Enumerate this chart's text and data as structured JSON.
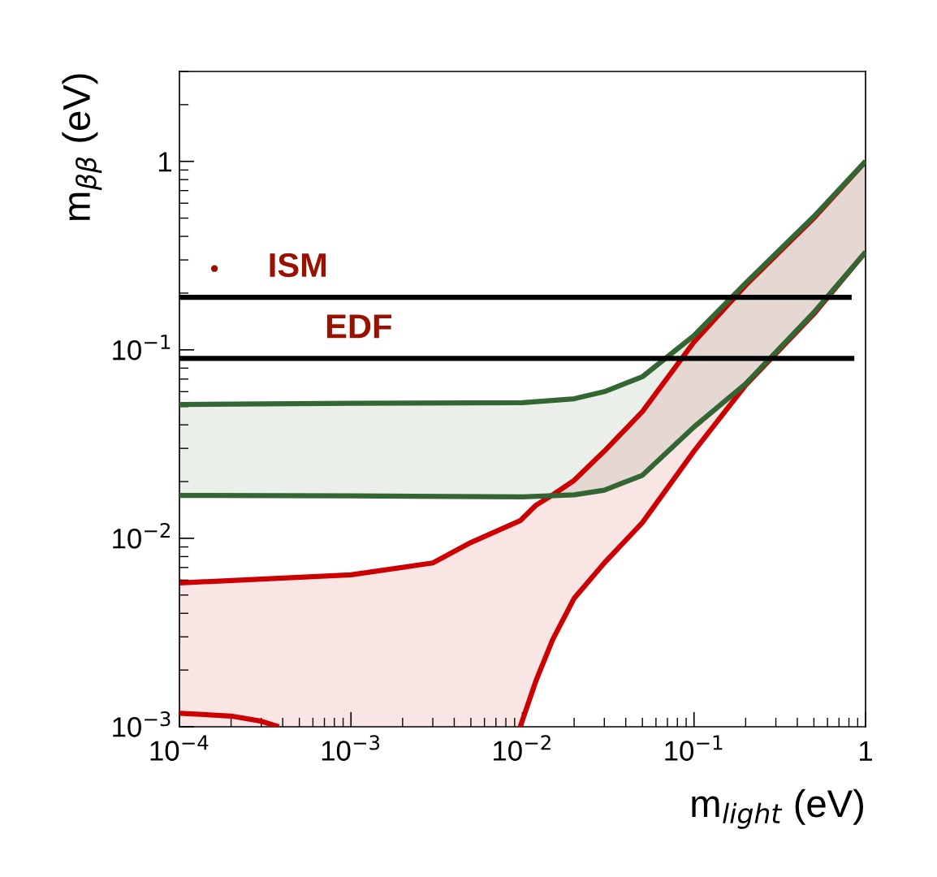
{
  "chart_data": {
    "type": "line",
    "xlabel": "m$_{light}$ (eV)",
    "ylabel": "m$_{ββ}$ (eV)",
    "log": "xy",
    "xlim": [
      0.0001,
      1
    ],
    "ylim": [
      0.001,
      3
    ],
    "xticks": [
      {
        "value": 0.0001,
        "label": "10$^{−4}$"
      },
      {
        "value": 0.001,
        "label": "10$^{−3}$"
      },
      {
        "value": 0.01,
        "label": "10$^{−2}$"
      },
      {
        "value": 0.1,
        "label": "10$^{−1}$"
      },
      1
    ],
    "yticks": [
      {
        "value": 0.001,
        "label": "10$^{−3}$"
      },
      {
        "value": 0.01,
        "label": "10$^{−2}$"
      },
      {
        "value": 0.1,
        "label": "10$^{−1}$"
      },
      1
    ],
    "grid": false,
    "legend": false,
    "series": [
      {
        "color": "#cc0000",
        "x": [
          0.0001,
          0.001,
          0.003,
          0.005,
          0.0097,
          0.012,
          0.015,
          0.02,
          0.03,
          0.05,
          0.1,
          0.2,
          0.5,
          1
        ],
        "values": [
          0.0058,
          0.0064,
          0.0074,
          0.0095,
          0.0124,
          0.015,
          0.017,
          0.0203,
          0.029,
          0.047,
          0.11,
          0.22,
          0.5,
          1.0
        ],
        "lower": [
          0.001,
          0.001,
          0.001,
          0.001,
          0.001,
          0.00176,
          0.0029,
          0.0048,
          0.0074,
          0.0121,
          0.029,
          0.065,
          0.155,
          0.33
        ],
        "upper": [
          0.0058,
          0.0064,
          0.0074,
          0.0095,
          0.0124,
          0.015,
          0.017,
          0.0203,
          0.029,
          0.047,
          0.11,
          0.22,
          0.5,
          1.0
        ]
      },
      {
        "color": "#cc0000",
        "x": [
          0.0097,
          0.012,
          0.015,
          0.02,
          0.03,
          0.05,
          0.1,
          0.2,
          0.5,
          1
        ],
        "values": [
          0.001,
          0.00176,
          0.0029,
          0.0048,
          0.0074,
          0.0121,
          0.029,
          0.065,
          0.155,
          0.33
        ]
      },
      {
        "color": "#cc0000",
        "x": [
          0.0001,
          0.0002,
          0.0003,
          0.00038
        ],
        "values": [
          0.00118,
          0.00114,
          0.00107,
          0.001
        ]
      },
      {
        "color": "#336633",
        "x": [
          0.0001,
          0.001,
          0.01,
          0.02,
          0.03,
          0.05,
          0.1,
          0.2,
          0.5,
          1
        ],
        "values": [
          0.0513,
          0.052,
          0.0525,
          0.055,
          0.06,
          0.072,
          0.119,
          0.226,
          0.51,
          1.0
        ],
        "lower": [
          0.0169,
          0.0168,
          0.0166,
          0.017,
          0.018,
          0.0216,
          0.039,
          0.066,
          0.158,
          0.33
        ],
        "upper": [
          0.0513,
          0.052,
          0.0525,
          0.055,
          0.06,
          0.072,
          0.119,
          0.226,
          0.51,
          1.0
        ]
      },
      {
        "color": "#336633",
        "x": [
          0.0001,
          0.001,
          0.01,
          0.02,
          0.03,
          0.05,
          0.1,
          0.2,
          0.5,
          1
        ],
        "values": [
          0.0169,
          0.0168,
          0.0166,
          0.017,
          0.018,
          0.0216,
          0.039,
          0.066,
          0.158,
          0.33
        ]
      },
      {
        "color": "#000000",
        "x": [
          0.0001,
          0.83
        ],
        "values": [
          0.19,
          0.19
        ]
      },
      {
        "color": "#000000",
        "x": [
          0.0001,
          0.86
        ],
        "values": [
          0.09,
          0.09
        ]
      },
      {
        "type": "scatter",
        "color": "#991100",
        "marker": "circle",
        "x": [
          0.00016
        ],
        "values": [
          0.27
        ]
      }
    ],
    "annotations": [
      {
        "text": "ISM",
        "x": 0.00049,
        "y": 0.19
      },
      {
        "text": "EDF",
        "x": 0.00111,
        "y": 0.09
      }
    ]
  }
}
